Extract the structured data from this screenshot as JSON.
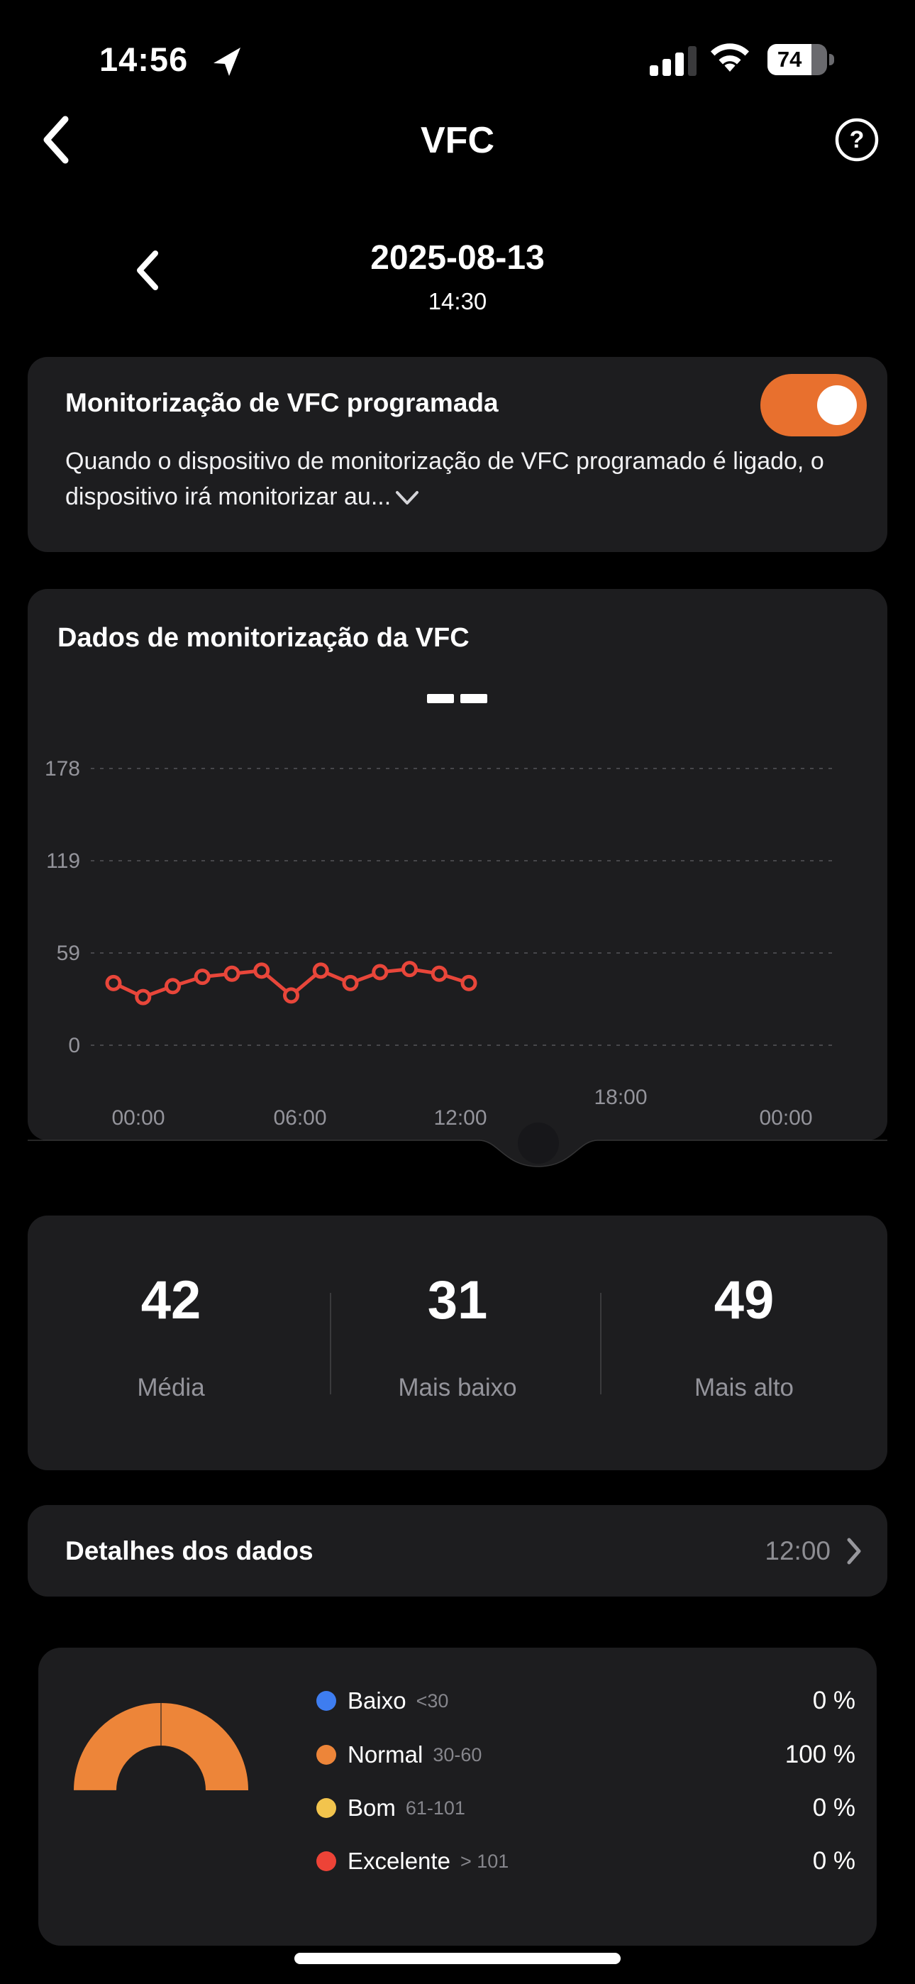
{
  "colors": {
    "background": "#000000",
    "card": "#1d1d1f",
    "accent_orange": "#e8702e",
    "donut_orange": "#ed8539",
    "line_red": "#e8463a",
    "text_secondary": "#94949b",
    "grid": "#47474b"
  },
  "status_bar": {
    "time": "14:56",
    "battery_percent": "74"
  },
  "header": {
    "title": "VFC",
    "help_icon": "?"
  },
  "date_nav": {
    "date": "2025-08-13",
    "time": "14:30"
  },
  "schedule_card": {
    "title": "Monitorização de VFC programada",
    "toggle_on": true,
    "description": "Quando o dispositivo de monitorização de VFC programado é ligado, o dispositivo irá monitorizar au..."
  },
  "chart_card": {
    "title": "Dados de monitorização da VFC",
    "selected_value_display": "- -"
  },
  "chart_data": {
    "type": "line",
    "title": "Dados de monitorização da VFC",
    "x": [
      "00:00",
      "01:00",
      "02:00",
      "03:00",
      "04:00",
      "05:00",
      "06:00",
      "07:00",
      "08:00",
      "09:00",
      "10:00",
      "11:00",
      "12:00"
    ],
    "series": [
      {
        "name": "VFC",
        "values": [
          40,
          31,
          38,
          44,
          46,
          48,
          32,
          48,
          40,
          47,
          49,
          46,
          40
        ]
      }
    ],
    "y_ticks": [
      0,
      59,
      119,
      178
    ],
    "ylim": [
      0,
      196
    ],
    "x_axis_labels": [
      "00:00",
      "06:00",
      "12:00",
      "18:00",
      "00:00"
    ],
    "grid": "dotted-horizontal",
    "cursor_time": "14:30",
    "cursor_value_display": "- -",
    "line_color": "#e8463a"
  },
  "stats": [
    {
      "value": "42",
      "label": "Média"
    },
    {
      "value": "31",
      "label": "Mais baixo"
    },
    {
      "value": "49",
      "label": "Mais alto"
    }
  ],
  "details_row": {
    "label": "Detalhes dos dados",
    "time": "12:00"
  },
  "distribution": {
    "type": "pie",
    "legend": [
      {
        "label": "Baixo",
        "range": "<30",
        "percent": "0 %",
        "value": 0,
        "color": "#3e7df0"
      },
      {
        "label": "Normal",
        "range": "30-60",
        "percent": "100 %",
        "value": 100,
        "color": "#ed8539"
      },
      {
        "label": "Bom",
        "range": "61-101",
        "percent": "0 %",
        "value": 0,
        "color": "#f2c44d"
      },
      {
        "label": "Excelente",
        "range": "> 101",
        "percent": "0 %",
        "value": 0,
        "color": "#ed4337"
      }
    ]
  }
}
